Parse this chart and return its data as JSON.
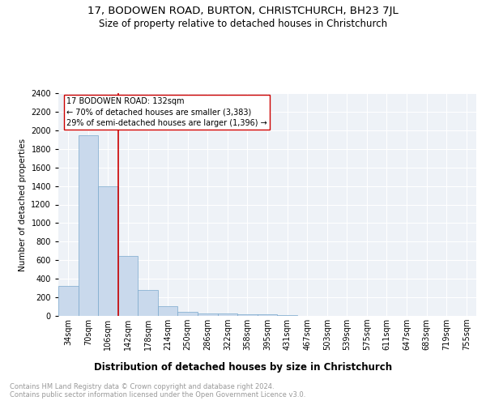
{
  "title": "17, BODOWEN ROAD, BURTON, CHRISTCHURCH, BH23 7JL",
  "subtitle": "Size of property relative to detached houses in Christchurch",
  "xlabel": "Distribution of detached houses by size in Christchurch",
  "ylabel": "Number of detached properties",
  "bin_labels": [
    "34sqm",
    "70sqm",
    "106sqm",
    "142sqm",
    "178sqm",
    "214sqm",
    "250sqm",
    "286sqm",
    "322sqm",
    "358sqm",
    "395sqm",
    "431sqm",
    "467sqm",
    "503sqm",
    "539sqm",
    "575sqm",
    "611sqm",
    "647sqm",
    "683sqm",
    "719sqm",
    "755sqm"
  ],
  "bar_heights": [
    320,
    1950,
    1400,
    650,
    280,
    105,
    45,
    30,
    25,
    20,
    15,
    5,
    3,
    2,
    1,
    1,
    1,
    0,
    0,
    0,
    0
  ],
  "bar_color": "#c9d9ec",
  "bar_edge_color": "#7aa8cc",
  "vline_color": "#cc0000",
  "annotation_text": "17 BODOWEN ROAD: 132sqm\n← 70% of detached houses are smaller (3,383)\n29% of semi-detached houses are larger (1,396) →",
  "annotation_box_color": "#ffffff",
  "ylim": [
    0,
    2400
  ],
  "yticks": [
    0,
    200,
    400,
    600,
    800,
    1000,
    1200,
    1400,
    1600,
    1800,
    2000,
    2200,
    2400
  ],
  "background_color": "#eef2f7",
  "footer_text": "Contains HM Land Registry data © Crown copyright and database right 2024.\nContains public sector information licensed under the Open Government Licence v3.0.",
  "title_fontsize": 9.5,
  "subtitle_fontsize": 8.5,
  "xlabel_fontsize": 8.5,
  "ylabel_fontsize": 7.5,
  "tick_fontsize": 7,
  "annotation_fontsize": 7,
  "footer_fontsize": 6
}
